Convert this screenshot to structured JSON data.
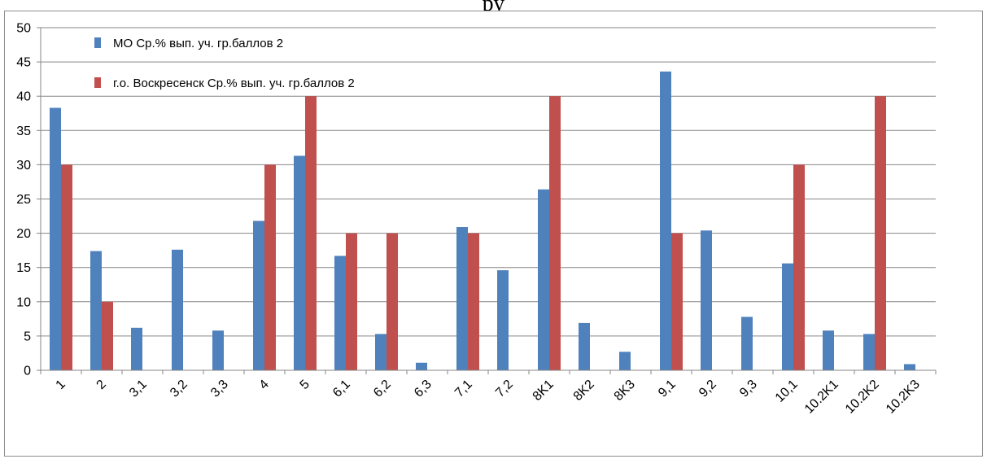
{
  "page": {
    "top_fragment": "ру"
  },
  "chart_data": {
    "type": "bar",
    "categories": [
      "1",
      "2",
      "3,1",
      "3,2",
      "3,3",
      "4",
      "5",
      "6,1",
      "6,2",
      "6,3",
      "7,1",
      "7,2",
      "8K1",
      "8K2",
      "8K3",
      "9,1",
      "9,2",
      "9,3",
      "10,1",
      "10.2K1",
      "10.2K2",
      "10.2K3"
    ],
    "series": [
      {
        "name": "МО Ср.% вып. уч. гр.баллов 2",
        "color": "#4f81bd",
        "values": [
          38.3,
          17.4,
          6.2,
          17.6,
          5.8,
          21.8,
          31.3,
          16.7,
          5.3,
          1.1,
          20.9,
          14.6,
          26.4,
          6.9,
          2.7,
          43.6,
          20.4,
          7.8,
          15.6,
          5.8,
          5.3,
          0.9
        ]
      },
      {
        "name": "г.о. Воскресенск Ср.% вып. уч. гр.баллов 2",
        "color": "#c0504d",
        "values": [
          30,
          10,
          0,
          0,
          0,
          30,
          40,
          20,
          20,
          0,
          20,
          0,
          40,
          0,
          0,
          20,
          0,
          0,
          30,
          0,
          40,
          0
        ]
      }
    ],
    "ylim": [
      0,
      50
    ],
    "yticks": [
      0,
      5,
      10,
      15,
      20,
      25,
      30,
      35,
      40,
      45,
      50
    ],
    "grid": true,
    "legend": "top-left",
    "xlabel": "",
    "ylabel": "",
    "title": ""
  }
}
